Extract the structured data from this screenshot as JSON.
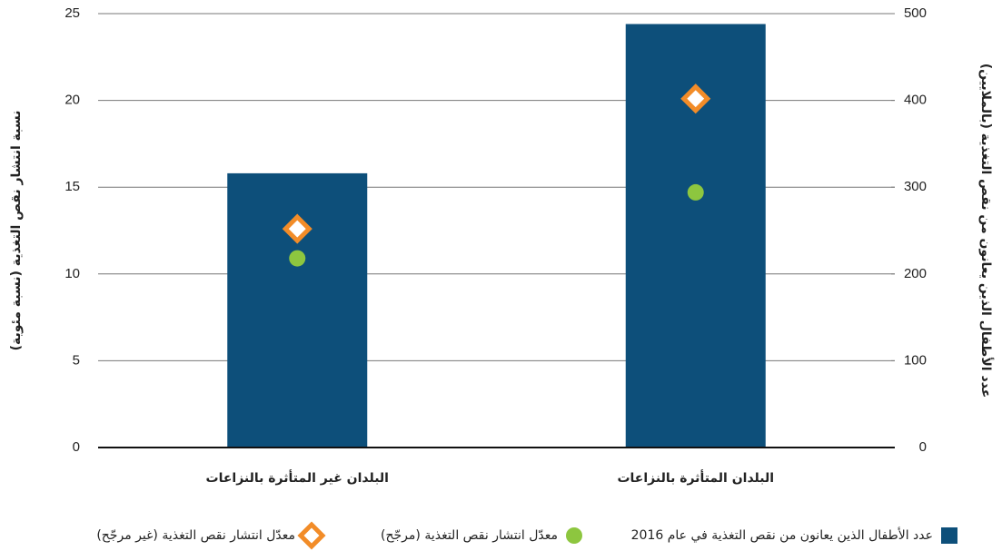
{
  "chart_data": {
    "type": "bar",
    "y_label": "نسبة انتشار نقص التغذية (نسبة مئوية)",
    "y2_label": "عدد الأطفال الذين يعانون من نقص التغذية (بالملايين)",
    "categories": [
      "البلدان غير المتأثرة بالنزاعات",
      "البلدان المتأثرة بالنزاعات"
    ],
    "series": [
      {
        "name": "عدد الأطفال الذين يعانون من نقص التغذية في عام 2016",
        "type": "bar",
        "axis": "y2",
        "color": "#0d4f7a",
        "values": [
          316,
          488
        ]
      },
      {
        "name": "معدّل انتشار نقص التغذية (مرجّح)",
        "type": "scatter",
        "marker": "circle",
        "color": "#8dc63f",
        "values": [
          10.9,
          14.7
        ]
      },
      {
        "name": "معدّل انتشار نقص التغذية (غير مرجّح)",
        "type": "scatter",
        "marker": "diamond",
        "color": "#f28c28",
        "values": [
          12.6,
          20.1
        ]
      }
    ],
    "ylim": [
      0,
      25
    ],
    "yticks": [
      0,
      5,
      10,
      15,
      20,
      25
    ],
    "y2lim": [
      0,
      500
    ],
    "y2ticks": [
      0,
      100,
      200,
      300,
      400,
      500
    ],
    "grid": true,
    "legend": "bottom"
  }
}
